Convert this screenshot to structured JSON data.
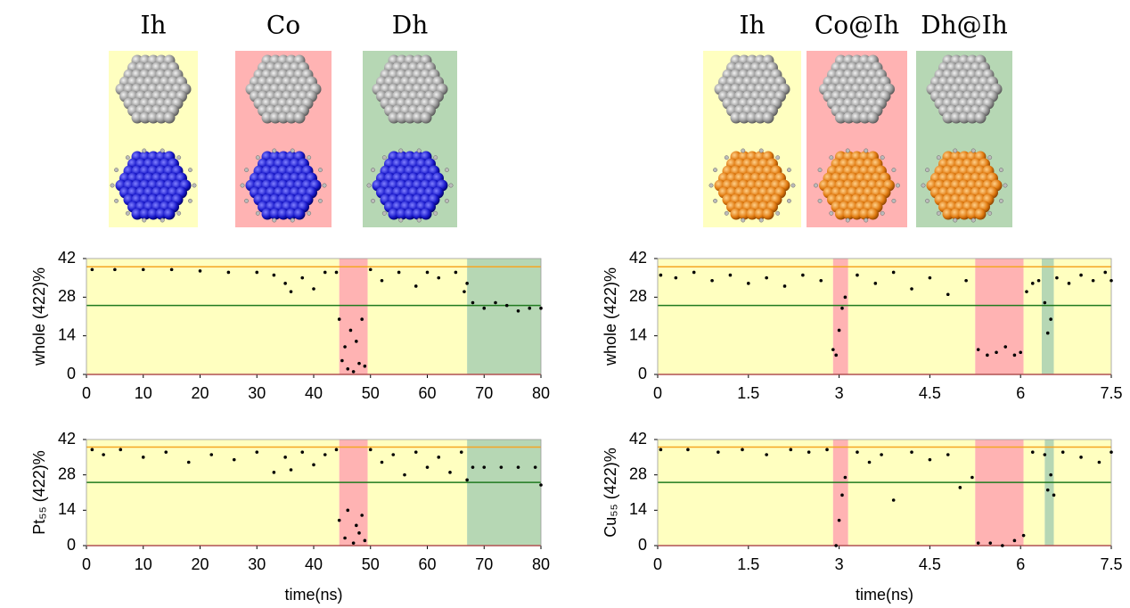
{
  "structures": {
    "left": [
      {
        "label": "Ih",
        "color": "#ffffc0",
        "atom_color": "blue"
      },
      {
        "label": "Co",
        "color": "#ffb3b3",
        "atom_color": "blue"
      },
      {
        "label": "Dh",
        "color": "#b6d7b4",
        "atom_color": "blue"
      }
    ],
    "right": [
      {
        "label": "Ih",
        "color": "#ffffc0",
        "atom_color": "orange"
      },
      {
        "label": "Co@Ih",
        "color": "#ffb3b3",
        "atom_color": "orange"
      },
      {
        "label": "Dh@Ih",
        "color": "#b6d7b4",
        "atom_color": "orange"
      }
    ]
  },
  "chart_data": [
    {
      "type": "scatter",
      "ylabel": "whole (422)%",
      "color": "#000000",
      "xlim": [
        0,
        80
      ],
      "xticks": [
        0,
        10,
        20,
        30,
        40,
        50,
        60,
        70,
        80
      ],
      "ylim": [
        0,
        42
      ],
      "yticks": [
        0,
        14,
        28,
        42
      ],
      "regions": [
        {
          "start": 0,
          "end": 44.5,
          "color": "#ffffc0"
        },
        {
          "start": 44.5,
          "end": 49.5,
          "color": "#ffb3b3"
        },
        {
          "start": 49.5,
          "end": 67,
          "color": "#ffffc0"
        },
        {
          "start": 67,
          "end": 80,
          "color": "#b6d7b4"
        }
      ],
      "hlines": [
        {
          "value": 39,
          "color": "#f5a623"
        },
        {
          "value": 25,
          "color": "#1f7a1f"
        },
        {
          "value": 0,
          "color": "#cc0000"
        }
      ],
      "x": [
        1,
        5,
        10,
        15,
        20,
        25,
        30,
        33,
        35,
        36,
        38,
        40,
        42,
        44,
        44.5,
        45,
        45.5,
        46,
        46.5,
        47,
        47.5,
        48,
        48.5,
        49,
        50,
        52,
        55,
        58,
        60,
        62,
        65,
        66.5,
        67,
        68,
        70,
        72,
        74,
        76,
        78,
        80
      ],
      "values": [
        38,
        38,
        38,
        38,
        37.5,
        37,
        37,
        36,
        33,
        30,
        35,
        31,
        37,
        37,
        20,
        5,
        10,
        2,
        16,
        1,
        12,
        4,
        20,
        3,
        38,
        34,
        37,
        32,
        37,
        35,
        37,
        30,
        33,
        26,
        24,
        26,
        25,
        23,
        24,
        24
      ]
    },
    {
      "type": "scatter",
      "ylabel": "Pt₅₅ (422)%",
      "xlabel": "time(ns)",
      "color": "#000000",
      "xlim": [
        0,
        80
      ],
      "xticks": [
        0,
        10,
        20,
        30,
        40,
        50,
        60,
        70,
        80
      ],
      "ylim": [
        0,
        42
      ],
      "yticks": [
        0,
        14,
        28,
        42
      ],
      "regions": [
        {
          "start": 0,
          "end": 44.5,
          "color": "#ffffc0"
        },
        {
          "start": 44.5,
          "end": 49.5,
          "color": "#ffb3b3"
        },
        {
          "start": 49.5,
          "end": 67,
          "color": "#ffffc0"
        },
        {
          "start": 67,
          "end": 80,
          "color": "#b6d7b4"
        }
      ],
      "hlines": [
        {
          "value": 39,
          "color": "#f5a623"
        },
        {
          "value": 25,
          "color": "#1f7a1f"
        },
        {
          "value": 0,
          "color": "#cc0000"
        }
      ],
      "x": [
        1,
        3,
        6,
        10,
        14,
        18,
        22,
        26,
        30,
        33,
        35,
        36,
        38,
        40,
        42,
        44,
        44.5,
        45.5,
        46,
        47,
        47.5,
        48,
        48.5,
        49,
        50,
        52,
        54,
        56,
        58,
        60,
        62,
        64,
        66,
        67,
        68,
        70,
        73,
        76,
        79,
        80
      ],
      "values": [
        38,
        36,
        38,
        35,
        37,
        33,
        36,
        34,
        37,
        29,
        35,
        30,
        37,
        32,
        36,
        38,
        10,
        3,
        14,
        1,
        8,
        5,
        12,
        2,
        38,
        33,
        36,
        28,
        37,
        31,
        35,
        29,
        37,
        26,
        31,
        31,
        31,
        31,
        31,
        24
      ]
    },
    {
      "type": "scatter",
      "ylabel": "whole (422)%",
      "color": "#000000",
      "xlim": [
        0,
        7.5
      ],
      "xticks": [
        0,
        1.5,
        3,
        4.5,
        6,
        7.5
      ],
      "ylim": [
        0,
        42
      ],
      "yticks": [
        0,
        14,
        28,
        42
      ],
      "regions": [
        {
          "start": 0,
          "end": 2.9,
          "color": "#ffffc0"
        },
        {
          "start": 2.9,
          "end": 3.15,
          "color": "#ffb3b3"
        },
        {
          "start": 3.15,
          "end": 5.25,
          "color": "#ffffc0"
        },
        {
          "start": 5.25,
          "end": 6.05,
          "color": "#ffb3b3"
        },
        {
          "start": 6.05,
          "end": 6.35,
          "color": "#ffffc0"
        },
        {
          "start": 6.35,
          "end": 6.55,
          "color": "#b6d7b4"
        },
        {
          "start": 6.55,
          "end": 7.5,
          "color": "#ffffc0"
        }
      ],
      "hlines": [
        {
          "value": 39,
          "color": "#f5a623"
        },
        {
          "value": 25,
          "color": "#1f7a1f"
        },
        {
          "value": 0,
          "color": "#cc0000"
        }
      ],
      "x": [
        0.05,
        0.3,
        0.6,
        0.9,
        1.2,
        1.5,
        1.8,
        2.1,
        2.4,
        2.7,
        2.9,
        2.95,
        3.0,
        3.05,
        3.1,
        3.3,
        3.6,
        3.9,
        4.2,
        4.5,
        4.8,
        5.1,
        5.3,
        5.45,
        5.6,
        5.75,
        5.9,
        6.0,
        6.1,
        6.2,
        6.3,
        6.4,
        6.45,
        6.5,
        6.6,
        6.8,
        7.0,
        7.2,
        7.4,
        7.5
      ],
      "values": [
        36,
        35,
        37,
        34,
        36,
        33,
        35,
        32,
        36,
        34,
        9,
        7,
        16,
        24,
        28,
        36,
        33,
        37,
        31,
        35,
        29,
        34,
        9,
        7,
        8,
        10,
        7,
        8,
        30,
        33,
        34,
        26,
        15,
        20,
        35,
        33,
        36,
        34,
        37,
        34
      ]
    },
    {
      "type": "scatter",
      "ylabel": "Cu₅₅ (422)%",
      "xlabel": "time(ns)",
      "color": "#000000",
      "xlim": [
        0,
        7.5
      ],
      "xticks": [
        0,
        1.5,
        3,
        4.5,
        6,
        7.5
      ],
      "ylim": [
        0,
        42
      ],
      "yticks": [
        0,
        14,
        28,
        42
      ],
      "regions": [
        {
          "start": 0,
          "end": 2.9,
          "color": "#ffffc0"
        },
        {
          "start": 2.9,
          "end": 3.15,
          "color": "#ffb3b3"
        },
        {
          "start": 3.15,
          "end": 5.25,
          "color": "#ffffc0"
        },
        {
          "start": 5.25,
          "end": 6.05,
          "color": "#ffb3b3"
        },
        {
          "start": 6.05,
          "end": 6.4,
          "color": "#ffffc0"
        },
        {
          "start": 6.4,
          "end": 6.55,
          "color": "#b6d7b4"
        },
        {
          "start": 6.55,
          "end": 7.5,
          "color": "#ffffc0"
        }
      ],
      "hlines": [
        {
          "value": 39,
          "color": "#f5a623"
        },
        {
          "value": 25,
          "color": "#1f7a1f"
        },
        {
          "value": 0,
          "color": "#cc0000"
        }
      ],
      "x": [
        0.05,
        0.5,
        1.0,
        1.4,
        1.8,
        2.2,
        2.5,
        2.8,
        2.95,
        3.0,
        3.05,
        3.1,
        3.3,
        3.5,
        3.7,
        3.9,
        4.2,
        4.5,
        4.8,
        5.0,
        5.2,
        5.3,
        5.5,
        5.7,
        5.9,
        6.05,
        6.2,
        6.4,
        6.45,
        6.5,
        6.55,
        6.7,
        7.0,
        7.3,
        7.5
      ],
      "values": [
        38,
        38,
        37,
        38,
        36,
        38,
        37,
        38,
        0,
        10,
        20,
        27,
        37,
        33,
        36,
        18,
        37,
        34,
        36,
        23,
        27,
        1,
        1,
        0,
        2,
        4,
        37,
        36,
        22,
        28,
        20,
        37,
        35,
        33,
        37
      ]
    }
  ]
}
